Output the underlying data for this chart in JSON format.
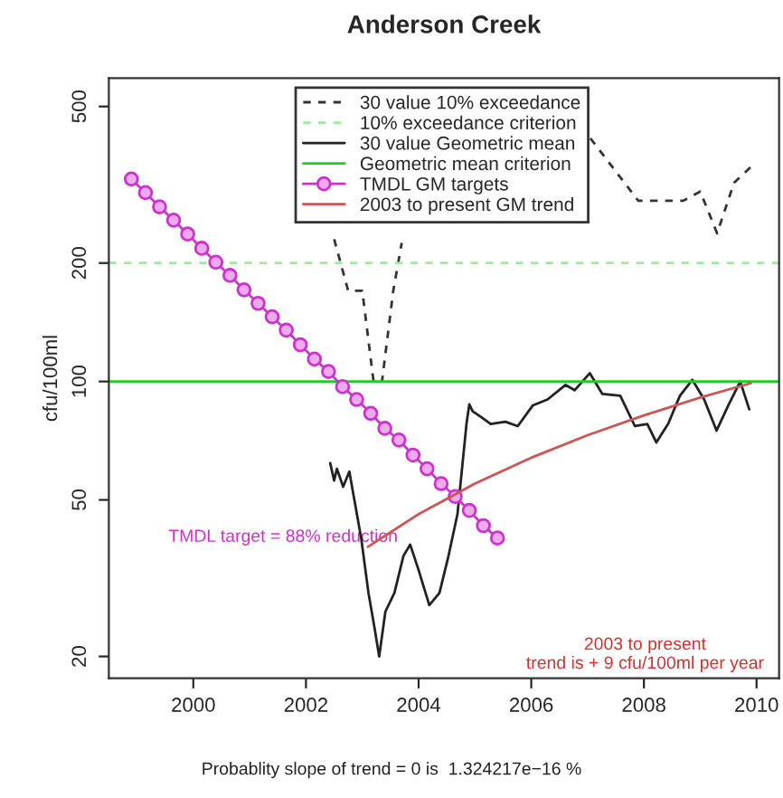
{
  "chart_data": {
    "type": "line",
    "title": "Anderson Creek",
    "ylabel": "cfu/100ml",
    "xlim": [
      1998.5,
      2010.4
    ],
    "ylim": [
      17.6,
      590
    ],
    "log": true,
    "xticks": [
      2000,
      2002,
      2004,
      2006,
      2008,
      2010
    ],
    "yticks": [
      20,
      50,
      100,
      200,
      500
    ],
    "grid": false,
    "legend": "top",
    "series": [
      {
        "name": "30 value 10% exceedance",
        "color": "#333333",
        "line_style": "dashed",
        "marker": "none",
        "x": [
          2002.5,
          2002.75,
          2003.0,
          2003.2,
          2003.35,
          2003.55,
          2003.7,
          2005.0,
          2007.05,
          2007.9,
          2008.7,
          2009.0,
          2009.3,
          2009.6,
          2009.9
        ],
        "values": [
          230,
          170,
          170,
          100,
          100,
          170,
          225,
          null,
          415,
          288,
          288,
          304,
          238,
          320,
          351
        ]
      },
      {
        "name": "10% exceedance criterion",
        "color": "#99ee99",
        "line_style": "dashed",
        "marker": "none",
        "x": [
          1998.5,
          2010.4
        ],
        "values": [
          200,
          200
        ]
      },
      {
        "name": "30 value Geometric mean",
        "color": "#222222",
        "line_style": "solid",
        "marker": "none",
        "x": [
          2002.43,
          2002.5,
          2002.55,
          2002.66,
          2002.77,
          2002.98,
          2003.11,
          2003.22,
          2003.3,
          2003.41,
          2003.57,
          2003.73,
          2003.85,
          2003.99,
          2004.19,
          2004.37,
          2004.53,
          2004.69,
          2004.85,
          2004.9,
          2004.96,
          2005.12,
          2005.28,
          2005.54,
          2005.76,
          2006.03,
          2006.29,
          2006.61,
          2006.77,
          2007.04,
          2007.26,
          2007.58,
          2007.84,
          2008.06,
          2008.22,
          2008.43,
          2008.64,
          2008.86,
          2009.07,
          2009.29,
          2009.5,
          2009.71,
          2009.87
        ],
        "values": [
          62,
          56,
          60,
          54,
          59,
          40,
          29,
          23.5,
          20,
          26,
          29,
          36,
          38.5,
          33.5,
          27,
          29,
          36,
          46,
          78,
          87.5,
          84,
          81,
          78,
          79,
          77,
          87,
          90,
          98,
          95,
          105,
          93,
          92,
          77,
          78,
          70,
          78,
          92,
          101,
          90,
          75,
          87,
          100,
          85
        ]
      },
      {
        "name": "Geometric mean criterion",
        "color": "#22cc22",
        "line_style": "solid",
        "marker": "none",
        "x": [
          1998.5,
          2010.4
        ],
        "values": [
          100,
          100
        ]
      },
      {
        "name": "TMDL GM targets",
        "color": "#cc33cc",
        "line_style": "solid",
        "marker": "circle",
        "x": [
          1998.9,
          1999.15,
          1999.4,
          1999.65,
          1999.9,
          2000.15,
          2000.4,
          2000.65,
          2000.9,
          2001.15,
          2001.4,
          2001.65,
          2001.9,
          2002.15,
          2002.4,
          2002.65,
          2002.9,
          2003.15,
          2003.4,
          2003.65,
          2003.9,
          2004.15,
          2004.4,
          2004.65,
          2004.9,
          2005.15,
          2005.4
        ],
        "values": [
          327,
          302,
          278,
          257,
          237,
          218,
          201,
          186,
          171,
          158,
          146,
          135,
          124,
          114,
          106,
          97,
          90,
          83,
          76,
          71,
          65,
          60,
          55,
          51,
          47,
          43,
          40
        ]
      },
      {
        "name": "2003 to present GM trend",
        "color": "#cc5555",
        "line_style": "solid",
        "marker": "none",
        "x": [
          2003.1,
          2004,
          2005,
          2006,
          2007,
          2008,
          2009,
          2009.9
        ],
        "values": [
          38,
          46,
          55,
          64,
          73,
          82,
          91,
          99
        ]
      }
    ],
    "annotations": [
      "TMDL target = 88% reduction",
      "2003 to present\ntrend is + 9 cfu/100ml per year",
      "Probablity slope of trend = 0 is  1.324217e−16 %"
    ]
  }
}
